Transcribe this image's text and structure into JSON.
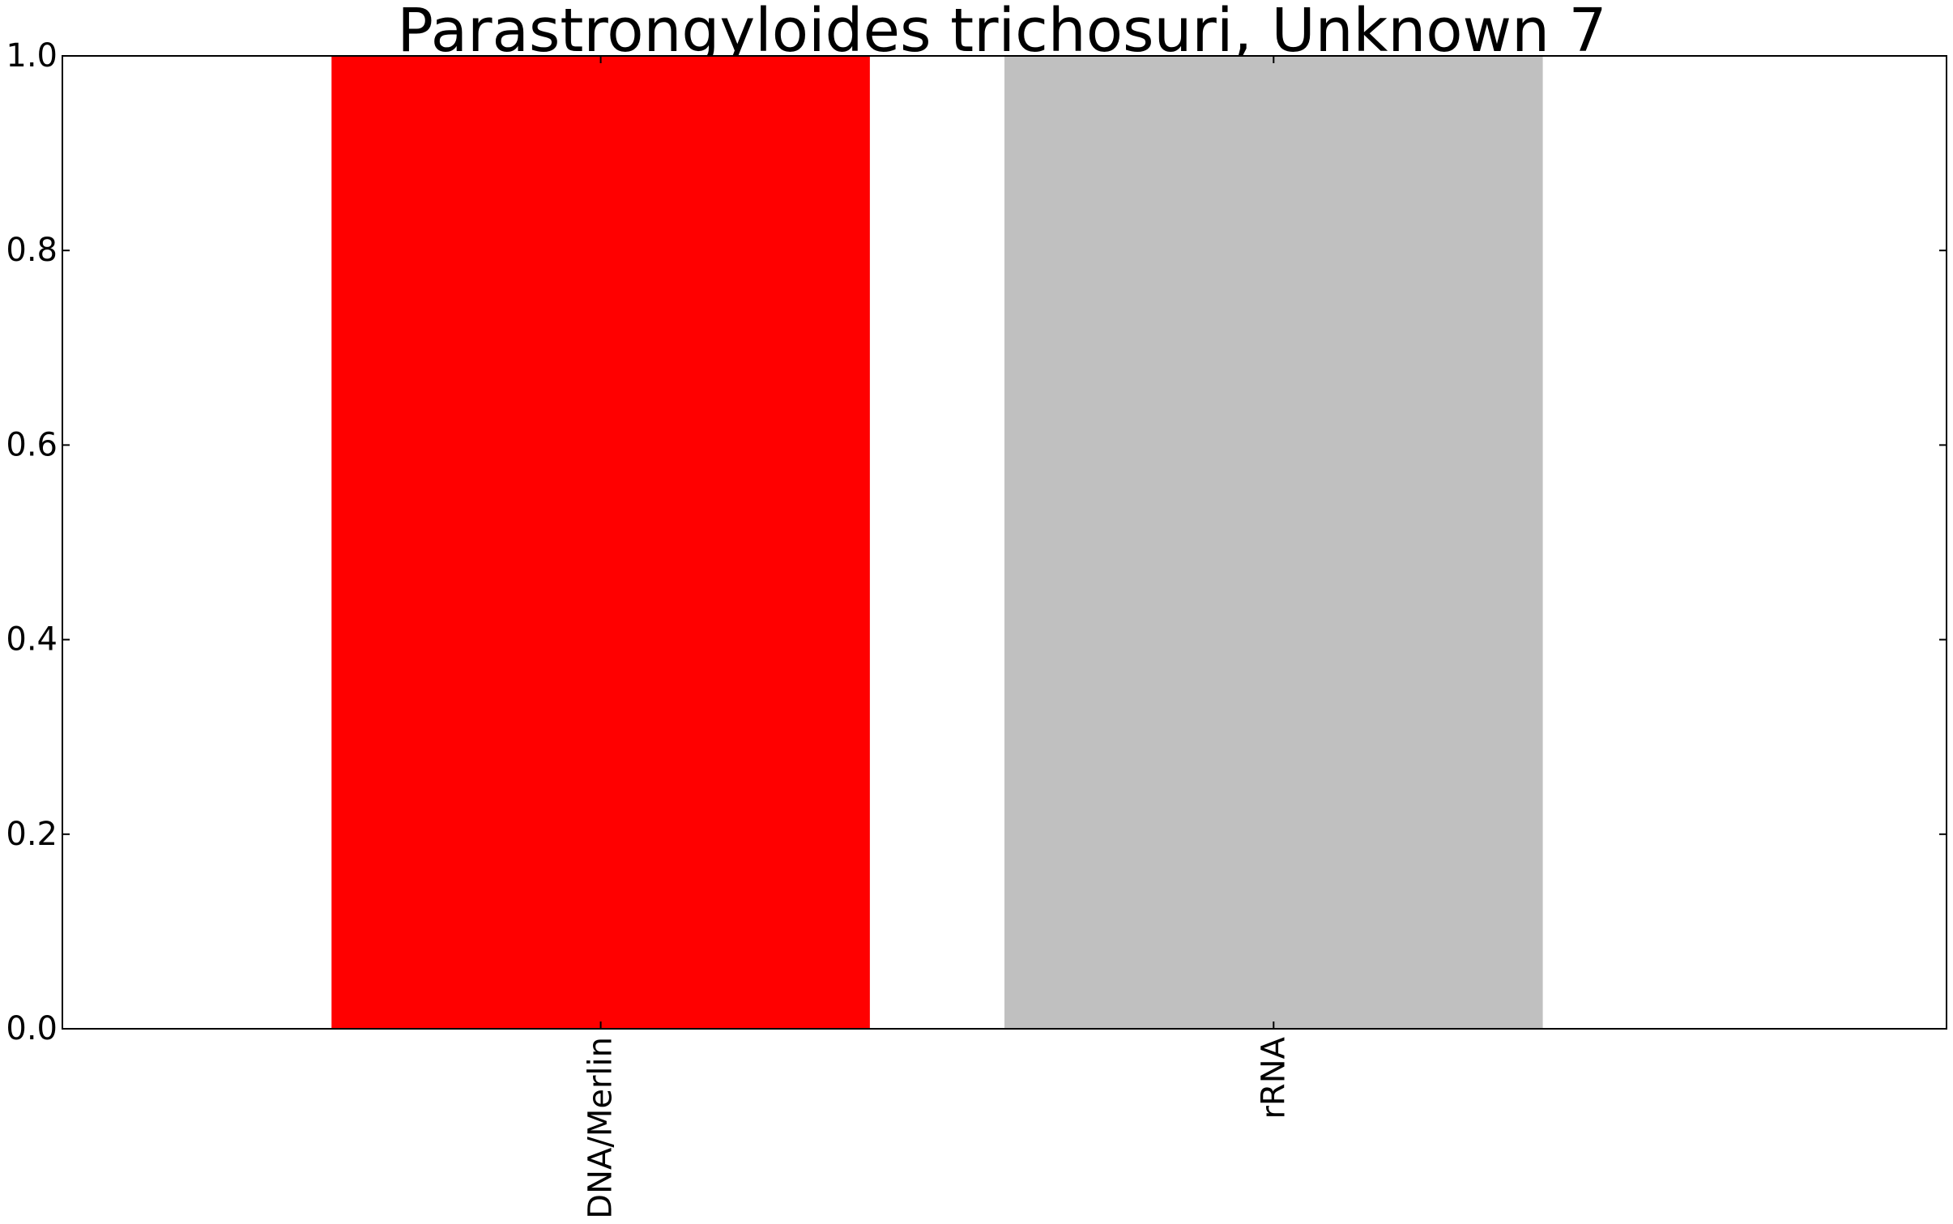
{
  "chart_data": {
    "type": "bar",
    "title": "Parastrongyloides trichosuri, Unknown 7",
    "xlabel": "",
    "ylabel": "",
    "categories": [
      "DNA/Merlin",
      "rRNA"
    ],
    "values": [
      1.0,
      1.0
    ],
    "colors": [
      "#ff0000",
      "#c0c0c0"
    ],
    "ylim": [
      0.0,
      1.0
    ],
    "xlim": [
      -0.8,
      2.0
    ],
    "bar_width": 0.8,
    "yticks": [
      "0.0",
      "0.2",
      "0.4",
      "0.6",
      "0.8",
      "1.0"
    ],
    "grid": false,
    "legend": "none"
  }
}
